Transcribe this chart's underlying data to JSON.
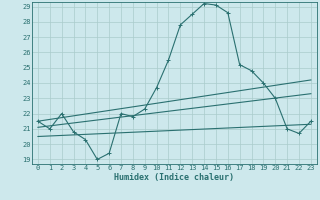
{
  "title": "",
  "xlabel": "Humidex (Indice chaleur)",
  "xlim": [
    -0.5,
    23.5
  ],
  "ylim": [
    18.7,
    29.3
  ],
  "yticks": [
    19,
    20,
    21,
    22,
    23,
    24,
    25,
    26,
    27,
    28,
    29
  ],
  "xticks": [
    0,
    1,
    2,
    3,
    4,
    5,
    6,
    7,
    8,
    9,
    10,
    11,
    12,
    13,
    14,
    15,
    16,
    17,
    18,
    19,
    20,
    21,
    22,
    23
  ],
  "bg_color": "#cde8ec",
  "grid_color": "#aacccc",
  "line_color": "#2a7070",
  "line1_x": [
    0,
    1,
    2,
    3,
    4,
    5,
    6,
    7,
    8,
    9,
    10,
    11,
    12,
    13,
    14,
    15,
    16,
    17,
    18,
    19,
    20,
    21,
    22,
    23
  ],
  "line1_y": [
    21.5,
    21.0,
    22.0,
    20.8,
    20.3,
    19.0,
    19.4,
    22.0,
    21.8,
    22.3,
    23.7,
    25.5,
    27.8,
    28.5,
    29.2,
    29.1,
    28.6,
    25.2,
    24.8,
    24.0,
    23.0,
    21.0,
    20.7,
    21.5
  ],
  "line2_x": [
    0,
    23
  ],
  "line2_y": [
    21.5,
    24.2
  ],
  "line3_x": [
    0,
    23
  ],
  "line3_y": [
    21.1,
    23.3
  ],
  "line4_x": [
    0,
    23
  ],
  "line4_y": [
    20.5,
    21.3
  ]
}
